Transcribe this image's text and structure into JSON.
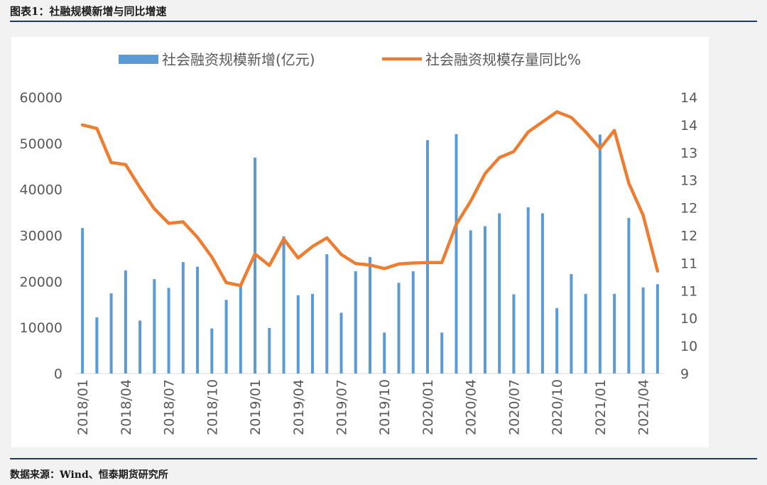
{
  "figure_title": "图表1：社融规模新增与同比增速",
  "source_note": "数据来源：Wind、恒泰期货研究所",
  "colors": {
    "bar": "#5b9bd5",
    "line": "#ed7d31",
    "rule": "#1f3a6b",
    "axis_text": "#595959"
  },
  "chart_data": {
    "type": "bar",
    "title": "",
    "xlabel": "",
    "ylabel": "",
    "x": [
      "2018/01",
      "2018/02",
      "2018/03",
      "2018/04",
      "2018/05",
      "2018/06",
      "2018/07",
      "2018/08",
      "2018/09",
      "2018/10",
      "2018/11",
      "2018/12",
      "2019/01",
      "2019/02",
      "2019/03",
      "2019/04",
      "2019/05",
      "2019/06",
      "2019/07",
      "2019/08",
      "2019/09",
      "2019/10",
      "2019/11",
      "2019/12",
      "2020/01",
      "2020/02",
      "2020/03",
      "2020/04",
      "2020/05",
      "2020/06",
      "2020/07",
      "2020/08",
      "2020/09",
      "2020/10",
      "2020/11",
      "2020/12",
      "2021/01",
      "2021/02",
      "2021/03",
      "2021/04",
      "2021/05"
    ],
    "x_tick_labels": [
      "2018/01",
      "2018/04",
      "2018/07",
      "2018/10",
      "2019/01",
      "2019/04",
      "2019/07",
      "2019/10",
      "2020/01",
      "2020/04",
      "2020/07",
      "2020/10",
      "2021/01",
      "2021/04"
    ],
    "series": [
      {
        "name": "社会融资规模新增(亿元)",
        "type": "bar",
        "axis": "left",
        "values": [
          31600,
          12200,
          17400,
          22400,
          11500,
          20500,
          18600,
          24200,
          23200,
          9800,
          16000,
          19400,
          46900,
          9900,
          29800,
          17000,
          17300,
          25900,
          13200,
          22200,
          25300,
          8900,
          19700,
          22200,
          50700,
          8900,
          52000,
          31100,
          32000,
          34800,
          17200,
          36100,
          34800,
          14200,
          21600,
          17300,
          51900,
          17300,
          33800,
          18700,
          19400
        ]
      },
      {
        "name": "社会融资规模存量同比%",
        "type": "line",
        "axis": "right",
        "values": [
          13.95,
          13.88,
          13.2,
          13.16,
          12.7,
          12.28,
          11.99,
          12.02,
          11.71,
          11.32,
          10.81,
          10.75,
          11.38,
          11.15,
          11.68,
          11.3,
          11.53,
          11.7,
          11.37,
          11.19,
          11.16,
          11.09,
          11.18,
          11.2,
          11.21,
          11.21,
          11.97,
          12.43,
          12.98,
          13.3,
          13.42,
          13.81,
          14.01,
          14.21,
          14.1,
          13.81,
          13.48,
          13.84,
          12.79,
          12.15,
          11.04
        ]
      }
    ],
    "ylim": [
      0,
      60000
    ],
    "y_ticks": [
      "0",
      "10000",
      "20000",
      "30000",
      "40000",
      "50000",
      "60000"
    ],
    "y2lim": [
      9,
      14.5
    ],
    "y2_ticks": [
      "9",
      "10",
      "10",
      "11",
      "11",
      "12",
      "12",
      "13",
      "13",
      "14",
      "14"
    ],
    "legend_position": "top",
    "grid": false
  }
}
